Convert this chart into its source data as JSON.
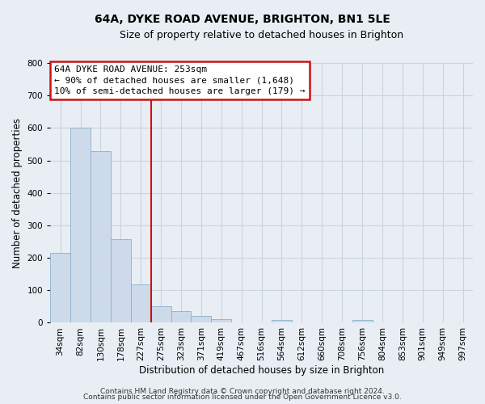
{
  "title": "64A, DYKE ROAD AVENUE, BRIGHTON, BN1 5LE",
  "subtitle": "Size of property relative to detached houses in Brighton",
  "xlabel": "Distribution of detached houses by size in Brighton",
  "ylabel": "Number of detached properties",
  "categories": [
    "34sqm",
    "82sqm",
    "130sqm",
    "178sqm",
    "227sqm",
    "275sqm",
    "323sqm",
    "371sqm",
    "419sqm",
    "467sqm",
    "516sqm",
    "564sqm",
    "612sqm",
    "660sqm",
    "708sqm",
    "756sqm",
    "804sqm",
    "853sqm",
    "901sqm",
    "949sqm",
    "997sqm"
  ],
  "bar_values": [
    215,
    600,
    530,
    258,
    118,
    52,
    35,
    20,
    12,
    0,
    0,
    8,
    0,
    0,
    0,
    8,
    0,
    0,
    0,
    0,
    0
  ],
  "bar_color": "#cddaea",
  "bar_edge_color": "#8ab0cc",
  "vline_color": "#cc1111",
  "vline_x": 4.5,
  "annotation_text_line1": "64A DYKE ROAD AVENUE: 253sqm",
  "annotation_text_line2": "← 90% of detached houses are smaller (1,648)",
  "annotation_text_line3": "10% of semi-detached houses are larger (179) →",
  "ylim": [
    0,
    800
  ],
  "yticks": [
    0,
    100,
    200,
    300,
    400,
    500,
    600,
    700,
    800
  ],
  "footer_line1": "Contains HM Land Registry data © Crown copyright and database right 2024.",
  "footer_line2": "Contains public sector information licensed under the Open Government Licence v3.0.",
  "background_color": "#e8eef4",
  "plot_background_color": "#e8eef4",
  "grid_color": "#c8d4de",
  "title_fontsize": 10,
  "subtitle_fontsize": 9,
  "axis_label_fontsize": 8.5,
  "tick_fontsize": 7.5,
  "annotation_fontsize": 8,
  "footer_fontsize": 6.5
}
